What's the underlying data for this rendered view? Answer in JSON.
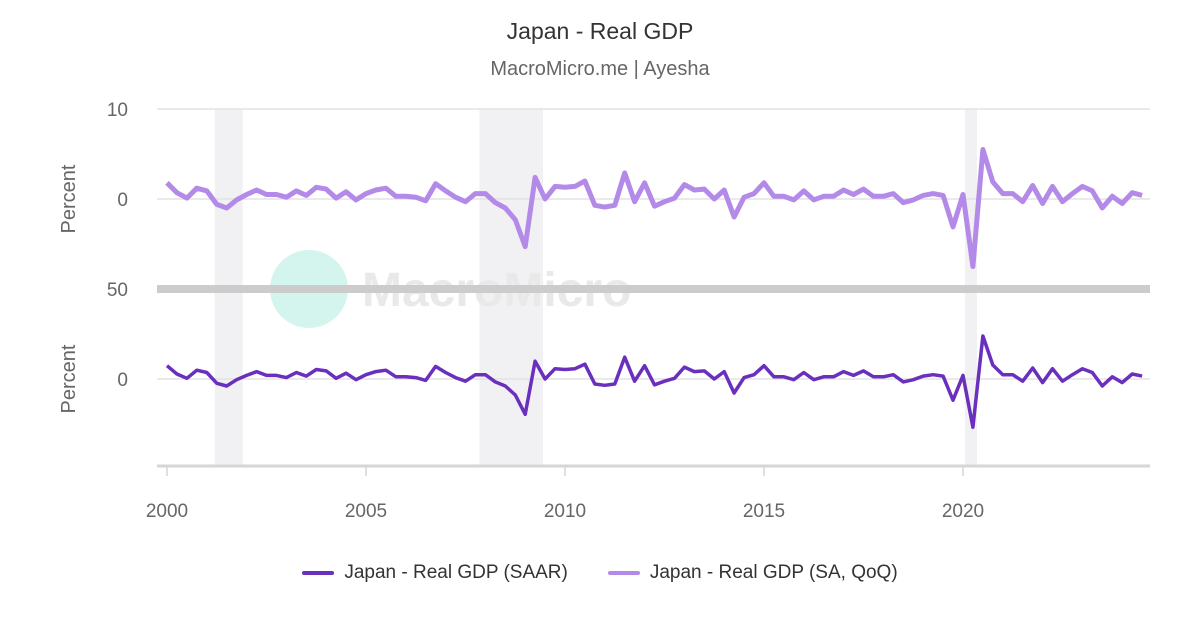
{
  "chart_data": {
    "type": "line",
    "title": "Japan - Real GDP",
    "subtitle": "MacroMicro.me | Ayesha",
    "watermark": "MacroMicro",
    "x_start": "2000Q1",
    "frequency": "quarterly",
    "x_ticks": [
      "2000",
      "2005",
      "2010",
      "2015",
      "2020"
    ],
    "xlim": [
      2000,
      2024.75
    ],
    "recessions": [
      [
        2001.2,
        2001.9
      ],
      [
        2007.85,
        2009.45
      ],
      [
        2020.05,
        2020.35
      ]
    ],
    "panels": [
      {
        "ylabel": "Percent",
        "ylim": [
          -10,
          10
        ],
        "y_ticks": [
          "10",
          "0"
        ],
        "series": "qoq"
      },
      {
        "ylabel": "Percent",
        "ylim": [
          -50,
          50
        ],
        "y_ticks": [
          "50",
          "0"
        ],
        "series": "saar"
      }
    ],
    "series": [
      {
        "key": "saar",
        "name": "Japan - Real GDP (SAAR)",
        "color": "#6a2fbd",
        "values": [
          7.4,
          2.8,
          0.4,
          4.9,
          3.6,
          -2.4,
          -3.9,
          -0.4,
          2.0,
          4.1,
          2.0,
          2.0,
          0.8,
          3.6,
          1.6,
          5.3,
          4.5,
          0.4,
          3.2,
          -0.4,
          2.4,
          4.1,
          4.9,
          1.2,
          1.2,
          0.8,
          -0.8,
          7.0,
          3.6,
          0.8,
          -1.2,
          2.4,
          2.4,
          -1.6,
          -3.9,
          -8.9,
          -19.6,
          9.9,
          0.0,
          5.7,
          5.3,
          5.7,
          8.2,
          -2.8,
          -3.5,
          -2.8,
          12.1,
          -1.2,
          7.4,
          -3.2,
          -1.2,
          0.4,
          6.6,
          4.1,
          4.5,
          0.0,
          4.1,
          -7.8,
          0.8,
          2.4,
          7.4,
          1.2,
          1.2,
          -0.4,
          3.6,
          -0.4,
          1.2,
          1.2,
          4.1,
          2.0,
          4.5,
          1.2,
          1.2,
          2.4,
          -1.6,
          -0.4,
          1.6,
          2.4,
          1.6,
          -11.8,
          2.0,
          -26.8,
          23.9,
          7.8,
          2.4,
          2.4,
          -1.2,
          6.1,
          -2.0,
          5.7,
          -1.2,
          2.4,
          5.7,
          3.6,
          -3.9,
          1.2,
          -2.0,
          2.8,
          1.6
        ]
      },
      {
        "key": "qoq",
        "name": "Japan - Real GDP (SA, QoQ)",
        "color": "#b48ae8",
        "values": [
          1.8,
          0.7,
          0.1,
          1.2,
          0.9,
          -0.6,
          -1.0,
          -0.1,
          0.5,
          1.0,
          0.5,
          0.5,
          0.2,
          0.9,
          0.4,
          1.3,
          1.1,
          0.1,
          0.8,
          -0.1,
          0.6,
          1.0,
          1.2,
          0.3,
          0.3,
          0.2,
          -0.2,
          1.7,
          0.9,
          0.2,
          -0.3,
          0.6,
          0.6,
          -0.4,
          -1.0,
          -2.3,
          -5.3,
          2.4,
          0.0,
          1.4,
          1.3,
          1.4,
          2.0,
          -0.7,
          -0.9,
          -0.7,
          2.9,
          -0.3,
          1.8,
          -0.8,
          -0.3,
          0.1,
          1.6,
          1.0,
          1.1,
          0.0,
          1.0,
          -2.0,
          0.2,
          0.6,
          1.8,
          0.3,
          0.3,
          -0.1,
          0.9,
          -0.1,
          0.3,
          0.3,
          1.0,
          0.5,
          1.1,
          0.3,
          0.3,
          0.6,
          -0.4,
          -0.1,
          0.4,
          0.6,
          0.4,
          -3.1,
          0.5,
          -7.5,
          5.5,
          1.9,
          0.6,
          0.6,
          -0.3,
          1.5,
          -0.5,
          1.4,
          -0.3,
          0.6,
          1.4,
          0.9,
          -1.0,
          0.3,
          -0.5,
          0.7,
          0.4
        ]
      }
    ],
    "legend": "bottom",
    "grid": true
  }
}
